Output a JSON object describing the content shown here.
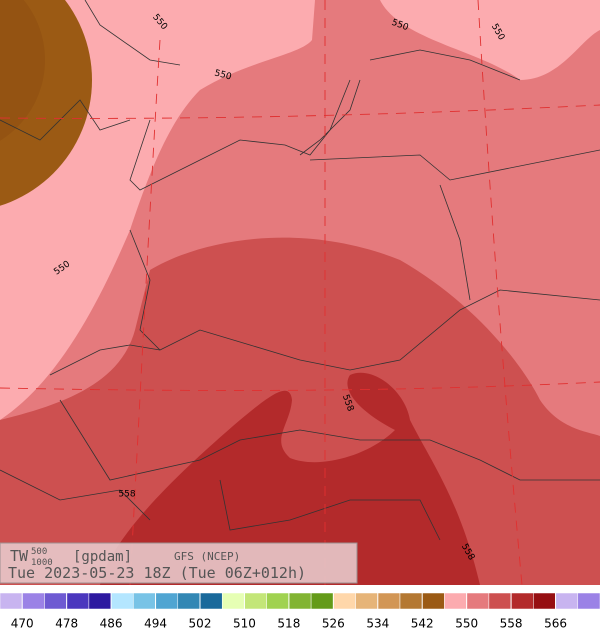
{
  "header": {
    "variable": "TW",
    "superscript": "500",
    "subscript": "1000",
    "unit": "[gpdam]",
    "model": "GFS (NCEP)",
    "time": "Tue 2023-05-23 18Z (Tue 06Z+012h)"
  },
  "contour_labels": [
    "550",
    "550",
    "550",
    "550",
    "550",
    "558",
    "558",
    "558"
  ],
  "colorbar": {
    "colors": [
      "#c8b4f0",
      "#9b82e6",
      "#6e5ad2",
      "#4b37be",
      "#2d19a0",
      "#b4e6ff",
      "#78c3e6",
      "#50a5d2",
      "#3287b4",
      "#19699b",
      "#e6ffb4",
      "#c3e678",
      "#a0d250",
      "#82b432",
      "#649b19",
      "#ffd7aa",
      "#e6b478",
      "#d29655",
      "#b47832",
      "#9b5a14",
      "#fcabaf",
      "#e57a7d",
      "#cd5050",
      "#b32a2b",
      "#960f12",
      "#c8b4f0",
      "#9b82e6"
    ],
    "labels": [
      470,
      478,
      486,
      494,
      502,
      510,
      518,
      526,
      534,
      542,
      550,
      558,
      566
    ]
  }
}
